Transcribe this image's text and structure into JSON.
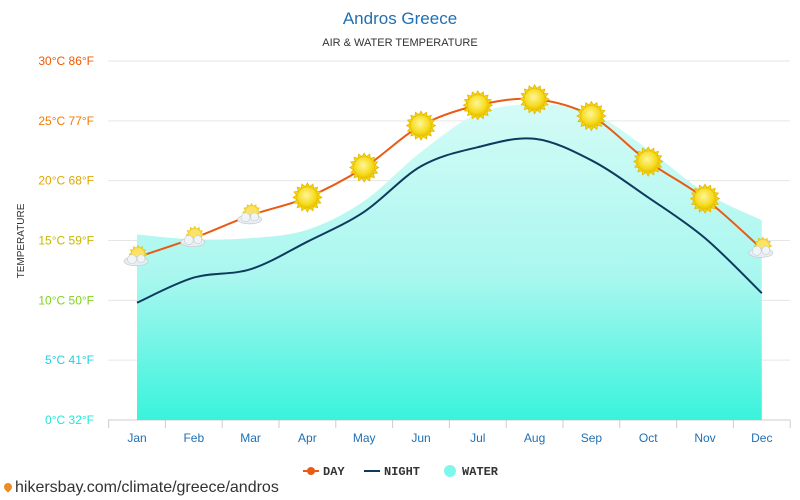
{
  "chart_data": {
    "type": "line",
    "title": "Andros Greece",
    "subtitle": "AIR & WATER TEMPERATURE",
    "ylabel": "TEMPERATURE",
    "categories": [
      "Jan",
      "Feb",
      "Mar",
      "Apr",
      "May",
      "Jun",
      "Jul",
      "Aug",
      "Sep",
      "Oct",
      "Nov",
      "Dec"
    ],
    "ylim": [
      0,
      30
    ],
    "y_ticks": [
      {
        "value": 0,
        "label": "0°C 32°F",
        "color": "#1de9d6"
      },
      {
        "value": 5,
        "label": "5°C 41°F",
        "color": "#22cfe0"
      },
      {
        "value": 10,
        "label": "10°C 50°F",
        "color": "#7fd21e"
      },
      {
        "value": 15,
        "label": "15°C 59°F",
        "color": "#c5b800"
      },
      {
        "value": 20,
        "label": "20°C 68°F",
        "color": "#e0a600"
      },
      {
        "value": 25,
        "label": "25°C 77°F",
        "color": "#ef7b00"
      },
      {
        "value": 30,
        "label": "30°C 86°F",
        "color": "#f05a00"
      }
    ],
    "series": [
      {
        "name": "DAY",
        "color": "#ea5a14",
        "values": [
          13.6,
          15.2,
          17.1,
          18.6,
          21.1,
          24.6,
          26.3,
          26.8,
          25.4,
          21.6,
          18.5,
          14.3
        ],
        "icons": [
          "partly-cloudy-icon",
          "partly-cloudy-icon",
          "partly-cloudy-icon",
          "sun-icon",
          "sun-icon",
          "sun-icon",
          "sun-icon",
          "sun-icon",
          "sun-icon",
          "sun-icon",
          "sun-icon",
          "partly-cloudy-icon"
        ]
      },
      {
        "name": "NIGHT",
        "color": "#0f3a5e",
        "values": [
          9.8,
          11.9,
          12.6,
          14.9,
          17.4,
          21.2,
          22.8,
          23.5,
          21.7,
          18.6,
          15.2,
          10.6
        ]
      },
      {
        "name": "WATER",
        "color": "#7ef7ec",
        "values": [
          15.5,
          15.1,
          15.2,
          15.9,
          18.3,
          22.4,
          25.6,
          26.4,
          25.7,
          22.6,
          19.0,
          16.7
        ]
      }
    ],
    "grid": true,
    "legend": "bottom-center"
  },
  "footer": {
    "source": "hikersbay.com/climate/greece/andros"
  }
}
